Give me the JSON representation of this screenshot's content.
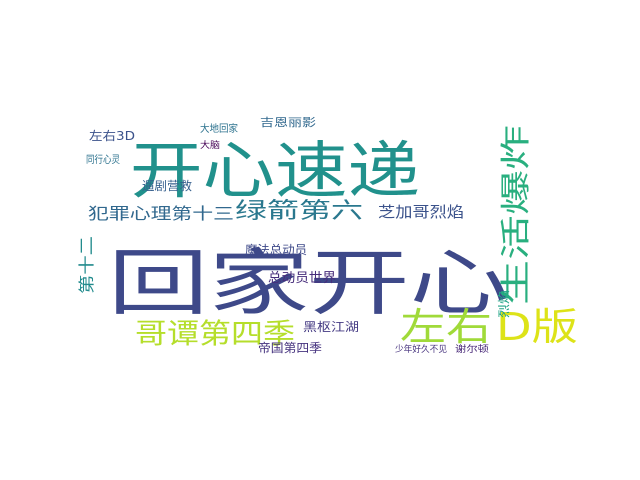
{
  "wordcloud": {
    "words": [
      {
        "text": "回家开心",
        "color": "#3e4989"
      },
      {
        "text": "开心速递",
        "color": "#21918c"
      },
      {
        "text": "哥谭第四季",
        "color": "#b5de2b"
      },
      {
        "text": "左右",
        "color": "#a0da39"
      },
      {
        "text": "D版",
        "color": "#dde318"
      },
      {
        "text": "生活爆炸",
        "color": "#29af7f"
      },
      {
        "text": "绿箭第六",
        "color": "#2a788e"
      },
      {
        "text": "犯罪心理第十三",
        "color": "#31688e"
      },
      {
        "text": "芝加哥烈焰",
        "color": "#3b528b"
      },
      {
        "text": "魔法总动员",
        "color": "#3e4989"
      },
      {
        "text": "总动员世界",
        "color": "#472d7b"
      },
      {
        "text": "黑枢江湖",
        "color": "#443a83"
      },
      {
        "text": "帝国第四季",
        "color": "#46337f"
      },
      {
        "text": "左右3D",
        "color": "#3b528b"
      },
      {
        "text": "遛剧营救",
        "color": "#355f8d"
      },
      {
        "text": "同行心灵",
        "color": "#2c728e"
      },
      {
        "text": "大地回家",
        "color": "#2c728e"
      },
      {
        "text": "吉恩丽影",
        "color": "#31688e"
      },
      {
        "text": "第十二",
        "color": "#228b8d"
      },
      {
        "text": "少年好久不见",
        "color": "#46327e"
      },
      {
        "text": "谢尔顿",
        "color": "#482878"
      },
      {
        "text": "烈焰",
        "color": "#20a486"
      },
      {
        "text": "大脑",
        "color": "#440154"
      }
    ]
  }
}
